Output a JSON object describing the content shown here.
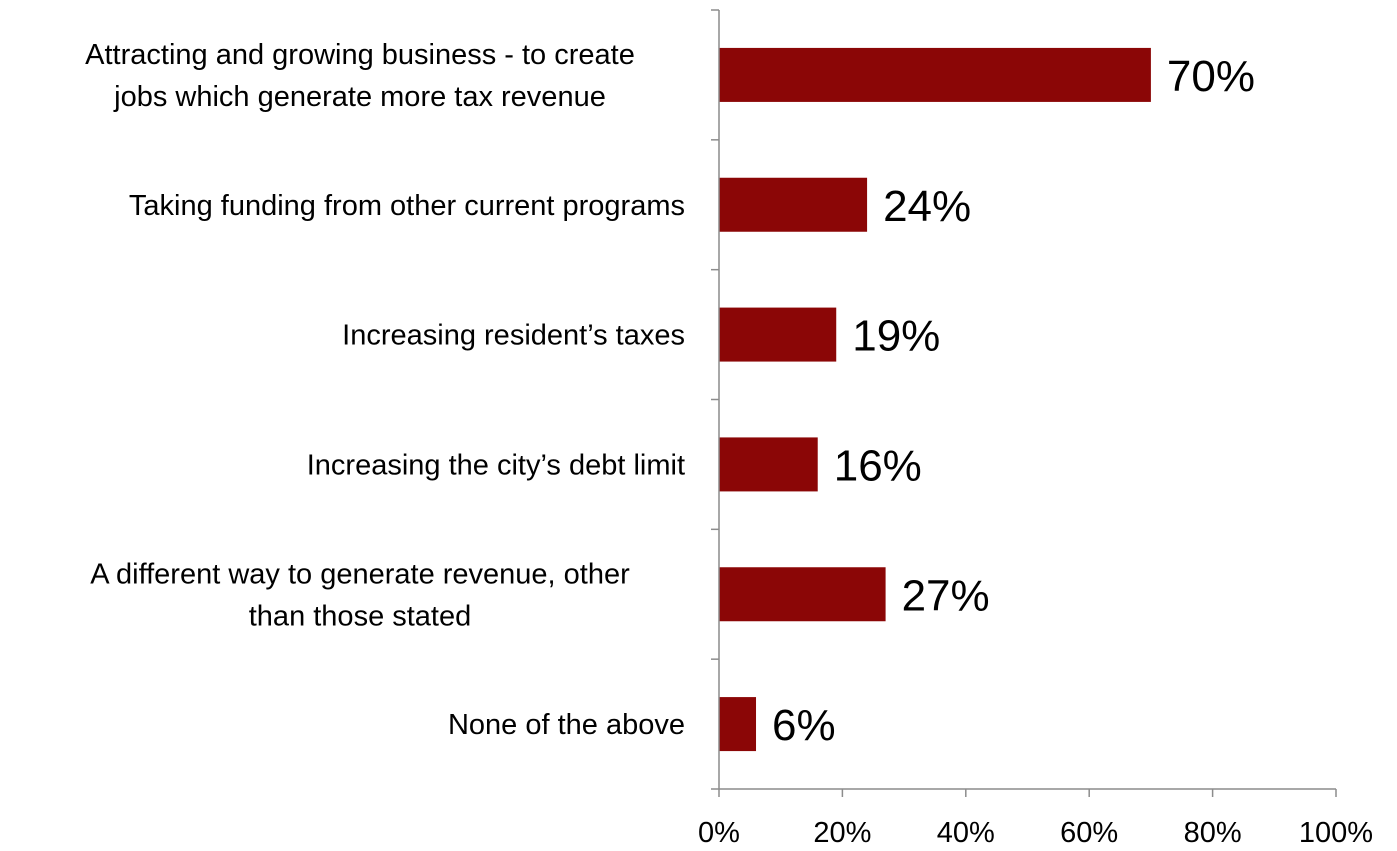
{
  "chart_data": {
    "type": "bar",
    "orientation": "horizontal",
    "categories": [
      [
        "Attracting and growing business - to create",
        "jobs which generate more tax revenue"
      ],
      [
        "Taking funding from other current programs"
      ],
      [
        "Increasing resident’s taxes"
      ],
      [
        "Increasing the city’s debt limit"
      ],
      [
        "A different way to generate revenue, other",
        "than those stated"
      ],
      [
        "None of the above"
      ]
    ],
    "values": [
      70,
      24,
      19,
      16,
      27,
      6
    ],
    "data_labels": [
      "70%",
      "24%",
      "19%",
      "16%",
      "27%",
      "6%"
    ],
    "xlim": [
      0,
      100
    ],
    "x_ticks": [
      0,
      20,
      40,
      60,
      80,
      100
    ],
    "x_tick_labels": [
      "0%",
      "20%",
      "40%",
      "60%",
      "80%",
      "100%"
    ],
    "bar_color": "#8b0606",
    "axis_color": "#8c8c8c",
    "grid": false,
    "legend": "none"
  }
}
